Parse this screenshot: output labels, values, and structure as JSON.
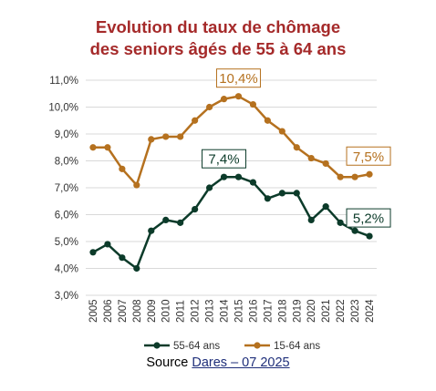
{
  "title_line1": "Evolution du taux de chômage",
  "title_line2": "des seniors âgés de 55 à 64 ans",
  "source_prefix": "Source",
  "source_link": "Dares – 07 2025",
  "colors": {
    "title": "#a52a2a",
    "series_55_64": "#0c3b2a",
    "series_15_64": "#b5711f",
    "grid": "#d9d9d9"
  },
  "chart_data": {
    "type": "line",
    "title": "Evolution du taux de chômage des seniors âgés de 55 à 64 ans",
    "x": [
      "2005",
      "2006",
      "2007",
      "2008",
      "2009",
      "2010",
      "2011",
      "2012",
      "2013",
      "2014",
      "2015",
      "2016",
      "2017",
      "2018",
      "2019",
      "2020",
      "2021",
      "2022",
      "2023",
      "2024"
    ],
    "ylim": [
      3.0,
      11.0
    ],
    "yticks": [
      "3,0%",
      "4,0%",
      "5,0%",
      "6,0%",
      "7,0%",
      "8,0%",
      "9,0%",
      "10,0%",
      "11,0%"
    ],
    "grid": true,
    "legend_position": "bottom",
    "series": [
      {
        "name": "55-64 ans",
        "color": "#0c3b2a",
        "values": [
          4.6,
          4.9,
          4.4,
          4.0,
          5.4,
          5.8,
          5.7,
          6.2,
          7.0,
          7.4,
          7.4,
          7.2,
          6.6,
          6.8,
          6.8,
          5.8,
          6.3,
          5.7,
          5.4,
          5.2
        ]
      },
      {
        "name": "15-64 ans",
        "color": "#b5711f",
        "values": [
          8.5,
          8.5,
          7.7,
          7.1,
          8.8,
          8.9,
          8.9,
          9.5,
          10.0,
          10.3,
          10.4,
          10.1,
          9.5,
          9.1,
          8.5,
          8.1,
          7.9,
          7.4,
          7.4,
          7.5
        ]
      }
    ],
    "annotations": [
      {
        "text": "10,4%",
        "series": 1,
        "index": 10
      },
      {
        "text": "7,5%",
        "series": 1,
        "index": 19
      },
      {
        "text": "7,4%",
        "series": 0,
        "index": 9
      },
      {
        "text": "5,2%",
        "series": 0,
        "index": 19
      }
    ]
  }
}
